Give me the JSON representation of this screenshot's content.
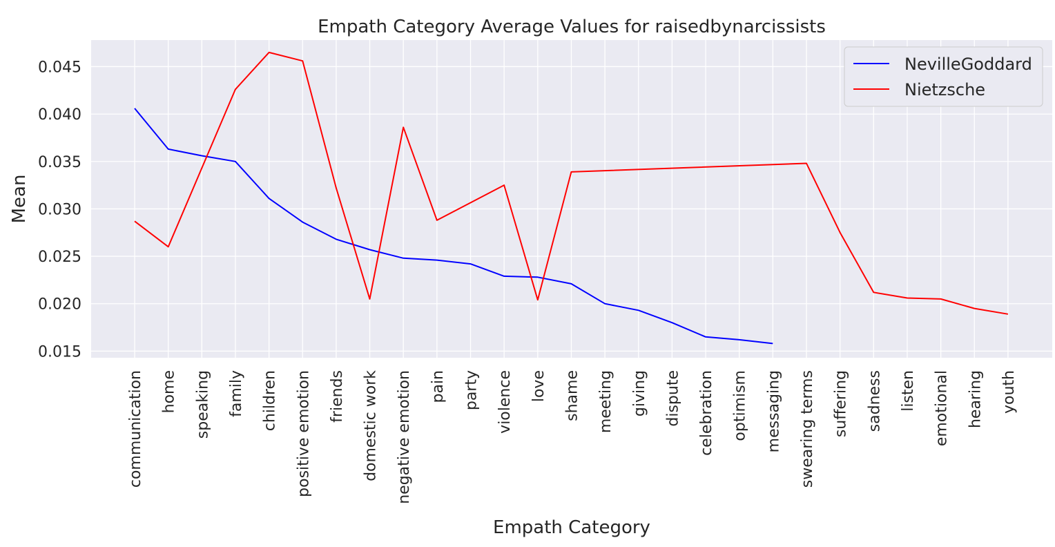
{
  "chart_data": {
    "type": "line",
    "title": "Empath Category Average Values for raisedbynarcissists",
    "xlabel": "Empath Category",
    "ylabel": "Mean",
    "categories": [
      "communication",
      "home",
      "speaking",
      "family",
      "children",
      "positive emotion",
      "friends",
      "domestic work",
      "negative emotion",
      "pain",
      "party",
      "violence",
      "love",
      "shame",
      "meeting",
      "giving",
      "dispute",
      "celebration",
      "optimism",
      "messaging",
      "swearing terms",
      "suffering",
      "sadness",
      "listen",
      "emotional",
      "hearing",
      "youth"
    ],
    "ylim": [
      0.0143,
      0.0478
    ],
    "yticks": [
      "0.015",
      "0.020",
      "0.025",
      "0.030",
      "0.035",
      "0.040",
      "0.045"
    ],
    "grid": true,
    "legend_position": "top-right",
    "series": [
      {
        "name": "NevilleGoddard",
        "color": "#0000ff",
        "points": [
          [
            "communication",
            0.0406
          ],
          [
            "home",
            0.0363
          ],
          [
            "speaking",
            0.0356
          ],
          [
            "family",
            0.035
          ],
          [
            "children",
            0.0311
          ],
          [
            "positive emotion",
            0.0286
          ],
          [
            "friends",
            0.0268
          ],
          [
            "domestic work",
            0.0257
          ],
          [
            "negative emotion",
            0.0248
          ],
          [
            "pain",
            0.0246
          ],
          [
            "party",
            0.0242
          ],
          [
            "violence",
            0.0229
          ],
          [
            "love",
            0.0228
          ],
          [
            "shame",
            0.0221
          ],
          [
            "meeting",
            0.02
          ],
          [
            "giving",
            0.0193
          ],
          [
            "dispute",
            0.018
          ],
          [
            "celebration",
            0.0165
          ],
          [
            "optimism",
            0.0162
          ],
          [
            "messaging",
            0.0158
          ]
        ]
      },
      {
        "name": "Nietzsche",
        "color": "#ff0000",
        "points": [
          [
            "communication",
            0.0287
          ],
          [
            "home",
            0.026
          ],
          [
            "family",
            0.0426
          ],
          [
            "children",
            0.0465
          ],
          [
            "positive emotion",
            0.0456
          ],
          [
            "friends",
            0.0322
          ],
          [
            "domestic work",
            0.0205
          ],
          [
            "negative emotion",
            0.0386
          ],
          [
            "pain",
            0.0288
          ],
          [
            "violence",
            0.0325
          ],
          [
            "love",
            0.0204
          ],
          [
            "shame",
            0.0339
          ],
          [
            "swearing terms",
            0.0348
          ],
          [
            "suffering",
            0.0275
          ],
          [
            "sadness",
            0.0212
          ],
          [
            "listen",
            0.0206
          ],
          [
            "emotional",
            0.0205
          ],
          [
            "hearing",
            0.0195
          ],
          [
            "youth",
            0.0189
          ]
        ]
      }
    ]
  }
}
